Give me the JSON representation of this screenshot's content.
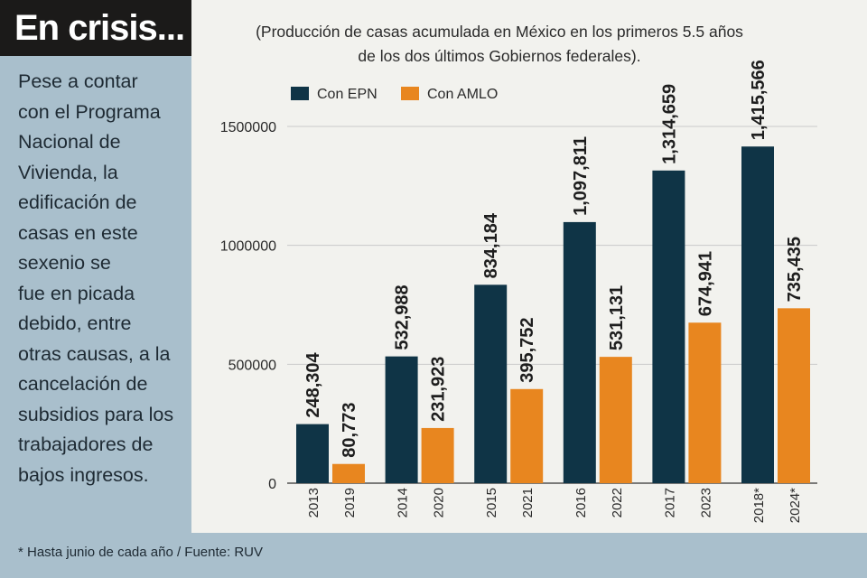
{
  "headline": "En crisis...",
  "description_lines": [
    "Pese a contar",
    "con el Programa",
    "Nacional de",
    "Vivienda, la",
    "edificación de",
    "casas en este",
    "sexenio se",
    "fue en picada",
    "debido, entre",
    "otras causas, a la",
    "cancelación de",
    "subsidios para los",
    "trabajadores de",
    "bajos ingresos."
  ],
  "footnote": "* Hasta junio de cada año / Fuente: RUV",
  "colors": {
    "epn": "#0f3446",
    "amlo": "#e8861f",
    "sidebar": "#a9bfcc",
    "title_bg": "#1b1a19",
    "plot_bg": "#f2f2ee"
  },
  "chart_data": {
    "type": "bar",
    "title_lines": [
      "(Producción de casas acumulada en México en los primeros 5.5 años",
      "de los dos últimos Gobiernos federales)."
    ],
    "legend": [
      "Con EPN",
      "Con AMLO"
    ],
    "legend_position": "top-left",
    "ylim": [
      0,
      1500000
    ],
    "yticks": [
      0,
      500000,
      1000000,
      1500000
    ],
    "ytick_labels": [
      "0",
      "500000",
      "1000000",
      "1500000"
    ],
    "grid": true,
    "groups": [
      {
        "epn_year": "2013",
        "amlo_year": "2019",
        "epn": 248304,
        "amlo": 80773,
        "epn_label": "248,304",
        "amlo_label": "80,773"
      },
      {
        "epn_year": "2014",
        "amlo_year": "2020",
        "epn": 532988,
        "amlo": 231923,
        "epn_label": "532,988",
        "amlo_label": "231,923"
      },
      {
        "epn_year": "2015",
        "amlo_year": "2021",
        "epn": 834184,
        "amlo": 395752,
        "epn_label": "834,184",
        "amlo_label": "395,752"
      },
      {
        "epn_year": "2016",
        "amlo_year": "2022",
        "epn": 1097811,
        "amlo": 531131,
        "epn_label": "1,097,811",
        "amlo_label": "531,131"
      },
      {
        "epn_year": "2017",
        "amlo_year": "2023",
        "epn": 1314659,
        "amlo": 674941,
        "epn_label": "1,314,659",
        "amlo_label": "674,941"
      },
      {
        "epn_year": "2018*",
        "amlo_year": "2024*",
        "epn": 1415566,
        "amlo": 735435,
        "epn_label": "1,415,566",
        "amlo_label": "735,435"
      }
    ]
  }
}
